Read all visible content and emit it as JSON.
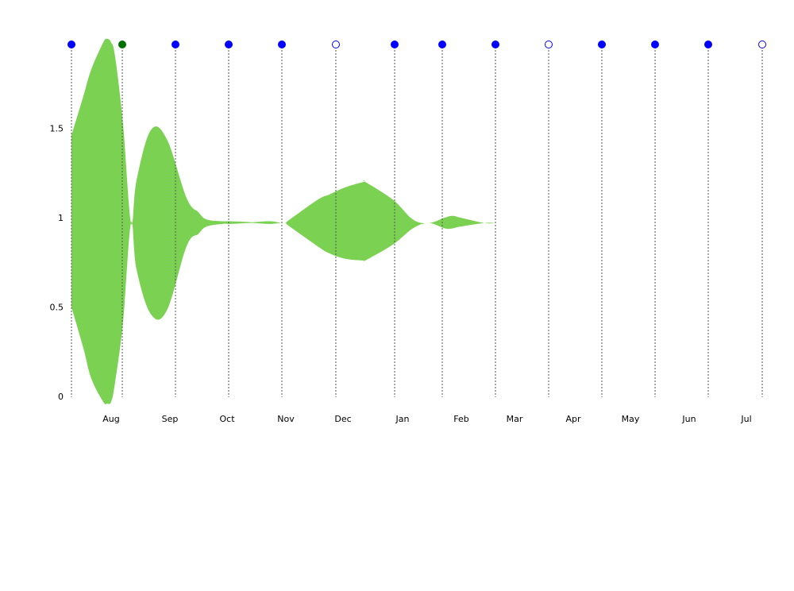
{
  "chart_data": {
    "type": "area",
    "title": "",
    "xlabel": "",
    "ylabel": "",
    "ylim": [
      0,
      2
    ],
    "y_ticks": [
      "0",
      "0.5",
      "1",
      "1.5"
    ],
    "y_tick_values": [
      0,
      0.5,
      1,
      1.5
    ],
    "x_tick_labels": [
      "Aug",
      "Sep",
      "Oct",
      "Nov",
      "Dec",
      "Jan",
      "Feb",
      "Mar",
      "Apr",
      "May",
      "Jun",
      "Jul"
    ],
    "grid": false,
    "center_line": 0.97,
    "series": [
      {
        "values_x": [
          0,
          15,
          25,
          40,
          45,
          50,
          55,
          65,
          75,
          82,
          100,
          120,
          145,
          160,
          170,
          190,
          200,
          225,
          230,
          250,
          268,
          275,
          310,
          325,
          345,
          368,
          370,
          405,
          430,
          450,
          470,
          480,
          490,
          520,
          535,
          550,
          575,
          600,
          610,
          626,
          640,
          650,
          668
        ],
        "upper": [
          1.46,
          1.68,
          1.83,
          1.98,
          2.0,
          1.98,
          1.9,
          1.52,
          0.97,
          1.21,
          1.49,
          1.44,
          1.11,
          1.03,
          0.99,
          0.98,
          0.98,
          0.975,
          0.975,
          0.98,
          0.97,
          0.99,
          1.1,
          1.13,
          1.17,
          1.2,
          1.2,
          1.1,
          0.99,
          0.97,
          1.0,
          1.01,
          1.0,
          0.97,
          0.97,
          0.97,
          0.97,
          0.97,
          0.97,
          0.97,
          0.97,
          0.97,
          0.97
        ],
        "lower": [
          0.5,
          0.27,
          0.1,
          -0.03,
          -0.04,
          -0.03,
          0.08,
          0.42,
          0.97,
          0.71,
          0.46,
          0.48,
          0.84,
          0.91,
          0.95,
          0.965,
          0.965,
          0.97,
          0.97,
          0.965,
          0.97,
          0.95,
          0.84,
          0.8,
          0.77,
          0.76,
          0.76,
          0.85,
          0.94,
          0.97,
          0.94,
          0.94,
          0.95,
          0.97,
          0.97,
          0.97,
          0.97,
          0.97,
          0.97,
          0.97,
          0.97,
          0.97,
          0.97
        ],
        "color": "#7ad152"
      }
    ],
    "markers": [
      {
        "filled": true,
        "color": "#0000ff"
      },
      {
        "filled": true,
        "color": "#007000"
      },
      {
        "filled": true,
        "color": "#0000ff"
      },
      {
        "filled": true,
        "color": "#0000ff"
      },
      {
        "filled": true,
        "color": "#0000ff"
      },
      {
        "filled": false,
        "color": "#0000ff"
      },
      {
        "filled": true,
        "color": "#0000ff"
      },
      {
        "filled": true,
        "color": "#0000ff"
      },
      {
        "filled": true,
        "color": "#0000ff"
      },
      {
        "filled": false,
        "color": "#0000ff"
      },
      {
        "filled": true,
        "color": "#0000ff"
      },
      {
        "filled": true,
        "color": "#0000ff"
      },
      {
        "filled": true,
        "color": "#0000ff"
      },
      {
        "filled": false,
        "color": "#0000ff"
      }
    ]
  }
}
